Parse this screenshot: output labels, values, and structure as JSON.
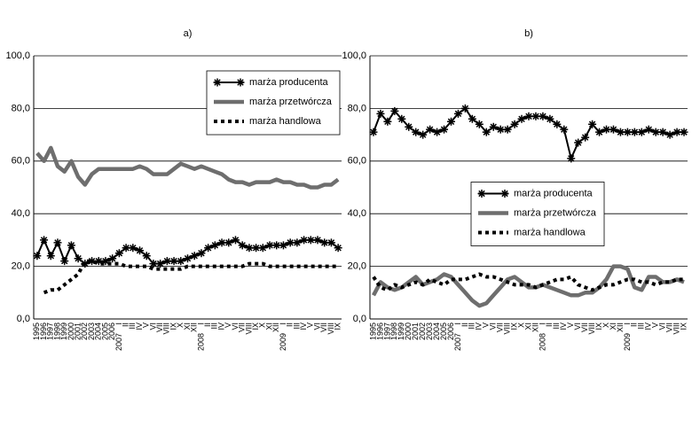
{
  "chart_data": [
    {
      "type": "line",
      "title": "a)",
      "category_groups": [
        {
          "categories": [
            "1995",
            "1996",
            "1997",
            "1998",
            "1999",
            "2000",
            "2001",
            "2002",
            "2003",
            "2004",
            "2005",
            "2006"
          ]
        },
        {
          "name": "2007",
          "categories": [
            "I",
            "II",
            "III",
            "IV",
            "V",
            "VI",
            "VII",
            "VIII",
            "IX",
            "X",
            "XI",
            "XII"
          ]
        },
        {
          "name": "2008",
          "categories": [
            "I",
            "II",
            "III",
            "IV",
            "V",
            "VI",
            "VII",
            "VIII",
            "IX",
            "X",
            "XI",
            "XII"
          ]
        },
        {
          "name": "2009",
          "categories": [
            "I",
            "II",
            "III",
            "IV",
            "V",
            "VI",
            "VII",
            "VIII",
            "IX"
          ]
        }
      ],
      "series": [
        {
          "name": "marża producenta",
          "color": "#000000",
          "marker": "star",
          "values": [
            24,
            30,
            24,
            29,
            22,
            28,
            23,
            21,
            22,
            22,
            22,
            23,
            25,
            27,
            27,
            26,
            24,
            21,
            21,
            22,
            22,
            22,
            23,
            24,
            25,
            27,
            28,
            29,
            29,
            30,
            28,
            27,
            27,
            27,
            28,
            28,
            28,
            29,
            29,
            30,
            30,
            30,
            29,
            29,
            27
          ]
        },
        {
          "name": "marża przetwórcza",
          "color": "#6e6e6e",
          "values": [
            63,
            60,
            65,
            58,
            56,
            60,
            54,
            51,
            55,
            57,
            57,
            57,
            57,
            57,
            57,
            58,
            57,
            55,
            55,
            55,
            57,
            59,
            58,
            57,
            58,
            57,
            56,
            55,
            53,
            52,
            52,
            51,
            52,
            52,
            52,
            53,
            52,
            52,
            51,
            51,
            50,
            50,
            51,
            51,
            53
          ]
        },
        {
          "name": "marża handlowa",
          "color": "#000000",
          "dash": "dotted",
          "values": [
            null,
            10,
            11,
            11,
            13,
            15,
            17,
            22,
            22,
            21,
            21,
            21,
            21,
            20,
            20,
            20,
            20,
            19,
            19,
            19,
            19,
            19,
            20,
            20,
            20,
            20,
            20,
            20,
            20,
            20,
            20,
            21,
            21,
            21,
            20,
            20,
            20,
            20,
            20,
            20,
            20,
            20,
            20,
            20,
            20
          ]
        }
      ],
      "ylim": [
        0,
        100
      ],
      "yticks": [
        {
          "value": 0,
          "label": "0,0"
        },
        {
          "value": 20,
          "label": "20,0"
        },
        {
          "value": 40,
          "label": "40,0"
        },
        {
          "value": 60,
          "label": "60,0"
        },
        {
          "value": 80,
          "label": "80,0"
        },
        {
          "value": 100,
          "label": "100,0"
        }
      ],
      "grid": true,
      "legend_position": "upper right"
    },
    {
      "type": "line",
      "title": "b)",
      "category_groups": [
        {
          "categories": [
            "1995",
            "1996",
            "1997",
            "1998",
            "1999",
            "2000",
            "2001",
            "2002",
            "2003",
            "2004",
            "2005",
            "2006"
          ]
        },
        {
          "name": "2007",
          "categories": [
            "I",
            "II",
            "III",
            "IV",
            "V",
            "VI",
            "VII",
            "VIII",
            "IX",
            "X",
            "XI",
            "XII"
          ]
        },
        {
          "name": "2008",
          "categories": [
            "I",
            "II",
            "III",
            "IV",
            "V",
            "VI",
            "VII",
            "VIII",
            "IX",
            "X",
            "XI",
            "XII"
          ]
        },
        {
          "name": "2009",
          "categories": [
            "I",
            "II",
            "III",
            "IV",
            "V",
            "VI",
            "VII",
            "VIII",
            "IX"
          ]
        }
      ],
      "series": [
        {
          "name": "marża producenta",
          "color": "#000000",
          "marker": "star",
          "values": [
            71,
            78,
            75,
            79,
            76,
            73,
            71,
            70,
            72,
            71,
            72,
            75,
            78,
            80,
            76,
            74,
            71,
            73,
            72,
            72,
            74,
            76,
            77,
            77,
            77,
            76,
            74,
            72,
            61,
            67,
            69,
            74,
            71,
            72,
            72,
            71,
            71,
            71,
            71,
            72,
            71,
            71,
            70,
            71,
            71
          ]
        },
        {
          "name": "marża przetwórcza",
          "color": "#6e6e6e",
          "values": [
            9,
            14,
            12,
            11,
            12,
            14,
            16,
            13,
            14,
            15,
            17,
            16,
            13,
            10,
            7,
            5,
            6,
            9,
            12,
            15,
            16,
            14,
            12,
            12,
            13,
            12,
            11,
            10,
            9,
            9,
            10,
            10,
            12,
            15,
            20,
            20,
            19,
            12,
            11,
            16,
            16,
            14,
            14,
            15,
            14
          ]
        },
        {
          "name": "marża handlowa",
          "color": "#000000",
          "dash": "dotted",
          "values": [
            16,
            12,
            11,
            13,
            12,
            13,
            14,
            13,
            15,
            14,
            13,
            15,
            15,
            15,
            16,
            17,
            16,
            16,
            15,
            14,
            13,
            13,
            13,
            12,
            13,
            14,
            15,
            15,
            16,
            13,
            12,
            11,
            12,
            13,
            13,
            14,
            15,
            15,
            14,
            14,
            13,
            14,
            14,
            15,
            15
          ]
        }
      ],
      "ylim": [
        0,
        100
      ],
      "yticks": [
        {
          "value": 0,
          "label": "0,0"
        },
        {
          "value": 20,
          "label": "20,0"
        },
        {
          "value": 40,
          "label": "40,0"
        },
        {
          "value": 60,
          "label": "60,0"
        },
        {
          "value": 80,
          "label": "80,0"
        },
        {
          "value": 100,
          "label": "100,0"
        }
      ],
      "grid": true,
      "legend_position": "center"
    }
  ]
}
